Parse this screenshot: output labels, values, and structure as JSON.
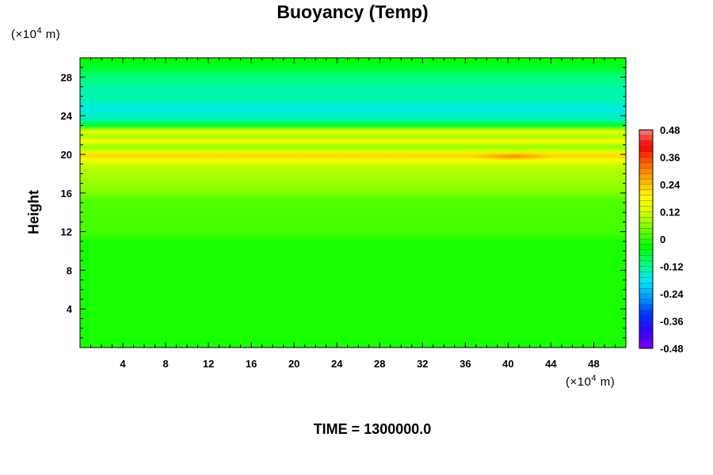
{
  "chart_data": {
    "type": "heatmap",
    "title": "Buoyancy (Temp)",
    "ylabel": "Height",
    "xlabel": "",
    "x_unit_prefix": "(×10",
    "x_unit_exp": "4",
    "x_unit_suffix": " m)",
    "y_unit_prefix": "(×10",
    "y_unit_exp": "4",
    "y_unit_suffix": " m)",
    "xlim": [
      0,
      51
    ],
    "ylim": [
      0,
      30
    ],
    "x_ticks": [
      4,
      8,
      12,
      16,
      20,
      24,
      28,
      32,
      36,
      40,
      44,
      48
    ],
    "x_tick_labels": [
      "4",
      "8",
      "12",
      "16",
      "20",
      "24",
      "28",
      "32",
      "36",
      "40",
      "44",
      "48"
    ],
    "y_ticks": [
      4,
      8,
      12,
      16,
      20,
      24,
      28
    ],
    "y_tick_labels": [
      "4",
      "8",
      "12",
      "16",
      "20",
      "24",
      "28"
    ],
    "field_profile": [
      {
        "y": 0,
        "value": -0.02
      },
      {
        "y": 11,
        "value": -0.02
      },
      {
        "y": 11.8,
        "value": 0.01
      },
      {
        "y": 15.2,
        "value": 0.02
      },
      {
        "y": 16.2,
        "value": 0.06
      },
      {
        "y": 18.8,
        "value": 0.1
      },
      {
        "y": 19.4,
        "value": 0.18
      },
      {
        "y": 19.8,
        "value": 0.22
      },
      {
        "y": 20.3,
        "value": 0.14
      },
      {
        "y": 20.8,
        "value": 0.07
      },
      {
        "y": 21.3,
        "value": 0.17
      },
      {
        "y": 21.8,
        "value": 0.09
      },
      {
        "y": 22.4,
        "value": 0.14
      },
      {
        "y": 23.0,
        "value": -0.06
      },
      {
        "y": 23.6,
        "value": -0.14
      },
      {
        "y": 24.8,
        "value": -0.17
      },
      {
        "y": 25.6,
        "value": -0.14
      },
      {
        "y": 27.0,
        "value": -0.13
      },
      {
        "y": 28.2,
        "value": -0.1
      },
      {
        "y": 29.2,
        "value": -0.05
      },
      {
        "y": 30,
        "value": -0.03
      }
    ],
    "hotspot": {
      "x": 40.5,
      "y": 19.8,
      "value": 0.32
    },
    "colorbar": {
      "min": -0.48,
      "max": 0.48,
      "ticks": [
        0.48,
        0.36,
        0.24,
        0.12,
        0,
        -0.12,
        -0.24,
        -0.36,
        -0.48
      ],
      "tick_labels": [
        "0.48",
        "0.36",
        "0.24",
        "0.12",
        "0",
        "-0.12",
        "-0.24",
        "-0.36",
        "-0.48"
      ],
      "colors": [
        "#7f00ff",
        "#3300ff",
        "#0033ff",
        "#0099ff",
        "#00e5ff",
        "#00ff80",
        "#00ff00",
        "#66ff00",
        "#ccff00",
        "#ffff00",
        "#ffb000",
        "#ff6600",
        "#ff0000",
        "#ff8080"
      ]
    },
    "time_label": "TIME = 1300000.0",
    "grid": false,
    "legend": "right"
  }
}
